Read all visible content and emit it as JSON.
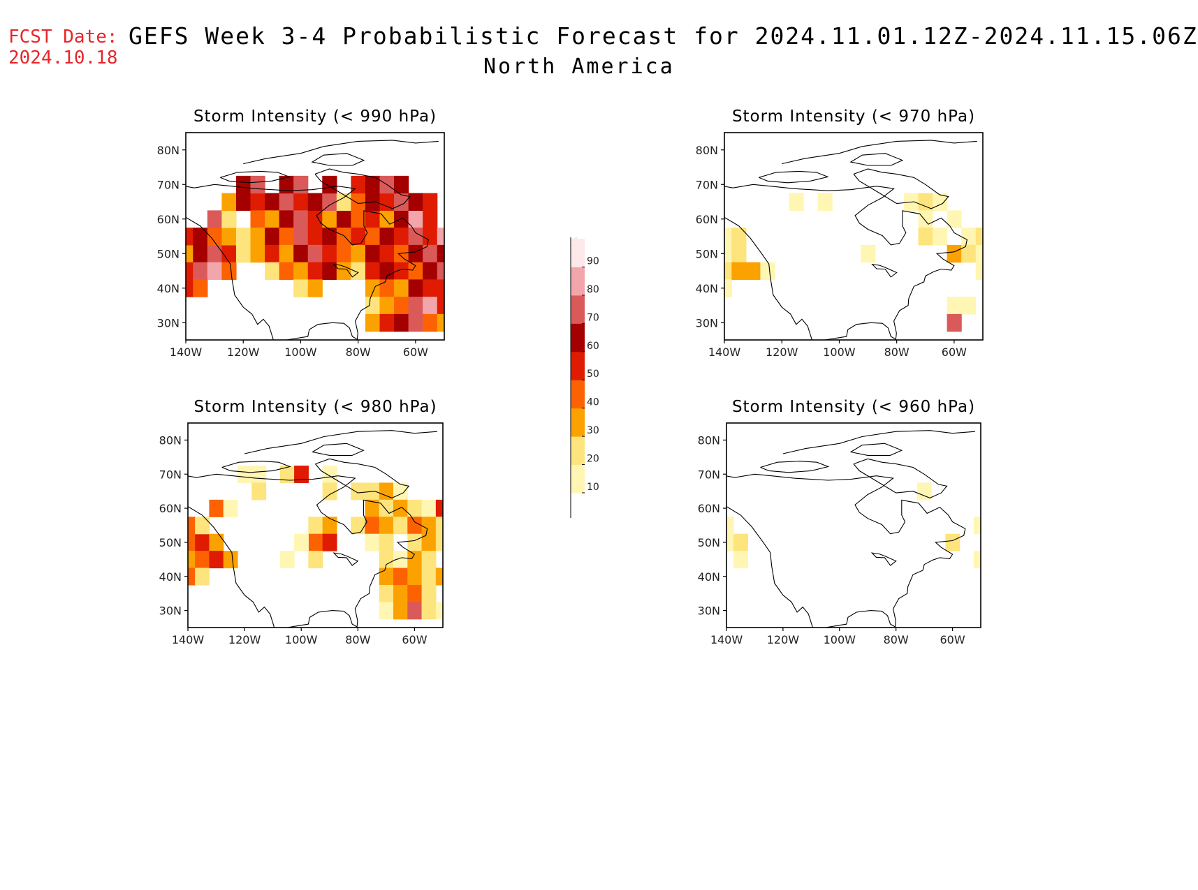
{
  "header": {
    "fcst_label": "FCST Date:",
    "fcst_date": "2024.10.18",
    "title": "GEFS Week 3-4 Probabilistic Forecast for 2024.11.01.12Z-2024.11.15.06Z",
    "subtitle": "North America"
  },
  "colors": {
    "text_red": "#e8262b",
    "bins": [
      "#fff6b3",
      "#fde47c",
      "#fca200",
      "#fd6202",
      "#df1c02",
      "#a50000",
      "#da5a5a",
      "#f2a6ac",
      "#fde8ea"
    ]
  },
  "colorbar": {
    "labels": [
      "10",
      "20",
      "30",
      "40",
      "50",
      "60",
      "70",
      "80",
      "90"
    ]
  },
  "axes": {
    "lat_labels": [
      "80N",
      "70N",
      "60N",
      "50N",
      "40N",
      "30N"
    ],
    "lon_labels": [
      "140W",
      "120W",
      "100W",
      "80W",
      "60W"
    ]
  },
  "panels": [
    {
      "title": "Storm Intensity (< 990 hPa)",
      "cells": [
        [
          50,
          -140,
          3
        ],
        [
          50,
          -135,
          6
        ],
        [
          50,
          -130,
          7
        ],
        [
          50,
          -125,
          5
        ],
        [
          45,
          -140,
          5
        ],
        [
          45,
          -135,
          7
        ],
        [
          45,
          -130,
          8
        ],
        [
          45,
          -125,
          4
        ],
        [
          40,
          -140,
          5
        ],
        [
          40,
          -135,
          4
        ],
        [
          55,
          -140,
          5
        ],
        [
          55,
          -135,
          6
        ],
        [
          55,
          -130,
          4
        ],
        [
          55,
          -125,
          3
        ],
        [
          60,
          -130,
          7
        ],
        [
          60,
          -125,
          2
        ],
        [
          65,
          -125,
          3
        ],
        [
          65,
          -120,
          6
        ],
        [
          65,
          -115,
          5
        ],
        [
          65,
          -110,
          6
        ],
        [
          65,
          -105,
          7
        ],
        [
          65,
          -100,
          5
        ],
        [
          70,
          -120,
          6
        ],
        [
          70,
          -115,
          7
        ],
        [
          70,
          -105,
          6
        ],
        [
          70,
          -100,
          7
        ],
        [
          60,
          -115,
          4
        ],
        [
          60,
          -110,
          3
        ],
        [
          60,
          -105,
          6
        ],
        [
          60,
          -100,
          7
        ],
        [
          60,
          -95,
          5
        ],
        [
          60,
          -90,
          3
        ],
        [
          60,
          -85,
          6
        ],
        [
          60,
          -80,
          4
        ],
        [
          60,
          -75,
          5
        ],
        [
          60,
          -70,
          3
        ],
        [
          60,
          -65,
          6
        ],
        [
          60,
          -60,
          8
        ],
        [
          60,
          -55,
          5
        ],
        [
          55,
          -120,
          2
        ],
        [
          55,
          -115,
          3
        ],
        [
          55,
          -110,
          6
        ],
        [
          55,
          -105,
          4
        ],
        [
          55,
          -100,
          7
        ],
        [
          55,
          -95,
          5
        ],
        [
          55,
          -90,
          6
        ],
        [
          55,
          -85,
          4
        ],
        [
          55,
          -80,
          5
        ],
        [
          55,
          -75,
          4
        ],
        [
          55,
          -70,
          6
        ],
        [
          55,
          -65,
          5
        ],
        [
          55,
          -60,
          7
        ],
        [
          55,
          -55,
          5
        ],
        [
          55,
          -50,
          8
        ],
        [
          50,
          -120,
          2
        ],
        [
          50,
          -115,
          3
        ],
        [
          50,
          -110,
          5
        ],
        [
          50,
          -105,
          3
        ],
        [
          50,
          -100,
          6
        ],
        [
          50,
          -95,
          7
        ],
        [
          50,
          -90,
          5
        ],
        [
          50,
          -85,
          4
        ],
        [
          50,
          -80,
          3
        ],
        [
          50,
          -75,
          6
        ],
        [
          50,
          -70,
          5
        ],
        [
          50,
          -65,
          4
        ],
        [
          50,
          -60,
          6
        ],
        [
          50,
          -55,
          7
        ],
        [
          50,
          -50,
          6
        ],
        [
          45,
          -110,
          2
        ],
        [
          45,
          -105,
          4
        ],
        [
          45,
          -100,
          3
        ],
        [
          45,
          -95,
          5
        ],
        [
          45,
          -90,
          6
        ],
        [
          45,
          -85,
          3
        ],
        [
          45,
          -80,
          2
        ],
        [
          45,
          -75,
          5
        ],
        [
          45,
          -70,
          6
        ],
        [
          45,
          -65,
          5
        ],
        [
          45,
          -60,
          4
        ],
        [
          45,
          -55,
          6
        ],
        [
          45,
          -50,
          7
        ],
        [
          40,
          -100,
          2
        ],
        [
          40,
          -95,
          3
        ],
        [
          40,
          -75,
          3
        ],
        [
          40,
          -70,
          4
        ],
        [
          40,
          -65,
          3
        ],
        [
          40,
          -60,
          6
        ],
        [
          40,
          -55,
          5
        ],
        [
          40,
          -50,
          5
        ],
        [
          35,
          -75,
          2
        ],
        [
          35,
          -70,
          3
        ],
        [
          35,
          -65,
          4
        ],
        [
          35,
          -60,
          7
        ],
        [
          35,
          -55,
          8
        ],
        [
          35,
          -50,
          5
        ],
        [
          30,
          -75,
          3
        ],
        [
          30,
          -70,
          5
        ],
        [
          30,
          -65,
          6
        ],
        [
          30,
          -60,
          7
        ],
        [
          30,
          -55,
          4
        ],
        [
          30,
          -50,
          3
        ],
        [
          65,
          -95,
          6
        ],
        [
          65,
          -90,
          7
        ],
        [
          65,
          -85,
          2
        ],
        [
          65,
          -80,
          4
        ],
        [
          65,
          -75,
          6
        ],
        [
          65,
          -70,
          5
        ],
        [
          65,
          -65,
          7
        ],
        [
          65,
          -60,
          6
        ],
        [
          65,
          -55,
          5
        ],
        [
          70,
          -90,
          6
        ],
        [
          70,
          -80,
          5
        ],
        [
          70,
          -75,
          6
        ],
        [
          70,
          -70,
          7
        ],
        [
          70,
          -65,
          6
        ]
      ]
    },
    {
      "title": "Storm Intensity (< 970 hPa)",
      "cells": [
        [
          50,
          -140,
          1
        ],
        [
          50,
          -135,
          2
        ],
        [
          45,
          -140,
          2
        ],
        [
          45,
          -135,
          3
        ],
        [
          45,
          -130,
          3
        ],
        [
          45,
          -125,
          1
        ],
        [
          55,
          -140,
          1
        ],
        [
          55,
          -135,
          2
        ],
        [
          40,
          -140,
          1
        ],
        [
          65,
          -75,
          1
        ],
        [
          65,
          -70,
          2
        ],
        [
          65,
          -65,
          1
        ],
        [
          60,
          -60,
          1
        ],
        [
          60,
          -70,
          1
        ],
        [
          55,
          -70,
          2
        ],
        [
          55,
          -65,
          1
        ],
        [
          55,
          -55,
          1
        ],
        [
          55,
          -50,
          2
        ],
        [
          50,
          -60,
          3
        ],
        [
          50,
          -55,
          2
        ],
        [
          50,
          -50,
          1
        ],
        [
          45,
          -50,
          1
        ],
        [
          35,
          -55,
          1
        ],
        [
          35,
          -60,
          1
        ],
        [
          30,
          -60,
          7
        ],
        [
          50,
          -90,
          1
        ],
        [
          65,
          -115,
          1
        ],
        [
          65,
          -105,
          1
        ]
      ]
    },
    {
      "title": "Storm Intensity (< 980 hPa)",
      "cells": [
        [
          50,
          -140,
          4
        ],
        [
          50,
          -135,
          5
        ],
        [
          50,
          -130,
          3
        ],
        [
          45,
          -140,
          3
        ],
        [
          45,
          -135,
          4
        ],
        [
          45,
          -130,
          5
        ],
        [
          45,
          -125,
          3
        ],
        [
          40,
          -140,
          4
        ],
        [
          40,
          -135,
          2
        ],
        [
          55,
          -140,
          4
        ],
        [
          55,
          -135,
          2
        ],
        [
          60,
          -130,
          4
        ],
        [
          60,
          -125,
          1
        ],
        [
          70,
          -120,
          1
        ],
        [
          70,
          -115,
          1
        ],
        [
          65,
          -115,
          2
        ],
        [
          70,
          -105,
          2
        ],
        [
          70,
          -100,
          5
        ],
        [
          70,
          -90,
          1
        ],
        [
          65,
          -90,
          2
        ],
        [
          55,
          -95,
          2
        ],
        [
          55,
          -90,
          3
        ],
        [
          50,
          -95,
          4
        ],
        [
          50,
          -90,
          5
        ],
        [
          45,
          -95,
          2
        ],
        [
          50,
          -100,
          1
        ],
        [
          45,
          -105,
          1
        ],
        [
          65,
          -80,
          2
        ],
        [
          65,
          -75,
          2
        ],
        [
          65,
          -70,
          3
        ],
        [
          65,
          -65,
          1
        ],
        [
          60,
          -75,
          3
        ],
        [
          60,
          -70,
          2
        ],
        [
          60,
          -65,
          3
        ],
        [
          60,
          -60,
          2
        ],
        [
          60,
          -55,
          1
        ],
        [
          60,
          -50,
          5
        ],
        [
          55,
          -80,
          2
        ],
        [
          55,
          -75,
          4
        ],
        [
          55,
          -70,
          3
        ],
        [
          55,
          -65,
          2
        ],
        [
          55,
          -60,
          4
        ],
        [
          55,
          -55,
          3
        ],
        [
          55,
          -50,
          2
        ],
        [
          50,
          -75,
          1
        ],
        [
          50,
          -70,
          2
        ],
        [
          50,
          -60,
          2
        ],
        [
          50,
          -55,
          3
        ],
        [
          50,
          -50,
          2
        ],
        [
          45,
          -70,
          2
        ],
        [
          45,
          -65,
          1
        ],
        [
          45,
          -60,
          3
        ],
        [
          45,
          -55,
          2
        ],
        [
          40,
          -70,
          3
        ],
        [
          40,
          -65,
          4
        ],
        [
          40,
          -60,
          3
        ],
        [
          40,
          -55,
          2
        ],
        [
          40,
          -50,
          3
        ],
        [
          35,
          -70,
          2
        ],
        [
          35,
          -65,
          3
        ],
        [
          35,
          -60,
          4
        ],
        [
          35,
          -55,
          2
        ],
        [
          30,
          -70,
          1
        ],
        [
          30,
          -65,
          3
        ],
        [
          30,
          -60,
          7
        ],
        [
          30,
          -55,
          2
        ],
        [
          30,
          -50,
          1
        ]
      ]
    },
    {
      "title": "Storm Intensity (< 960 hPa)",
      "cells": [
        [
          50,
          -140,
          1
        ],
        [
          50,
          -135,
          2
        ],
        [
          45,
          -135,
          1
        ],
        [
          55,
          -140,
          1
        ],
        [
          65,
          -70,
          1
        ],
        [
          50,
          -60,
          2
        ],
        [
          55,
          -50,
          1
        ],
        [
          45,
          -50,
          1
        ]
      ]
    }
  ]
}
